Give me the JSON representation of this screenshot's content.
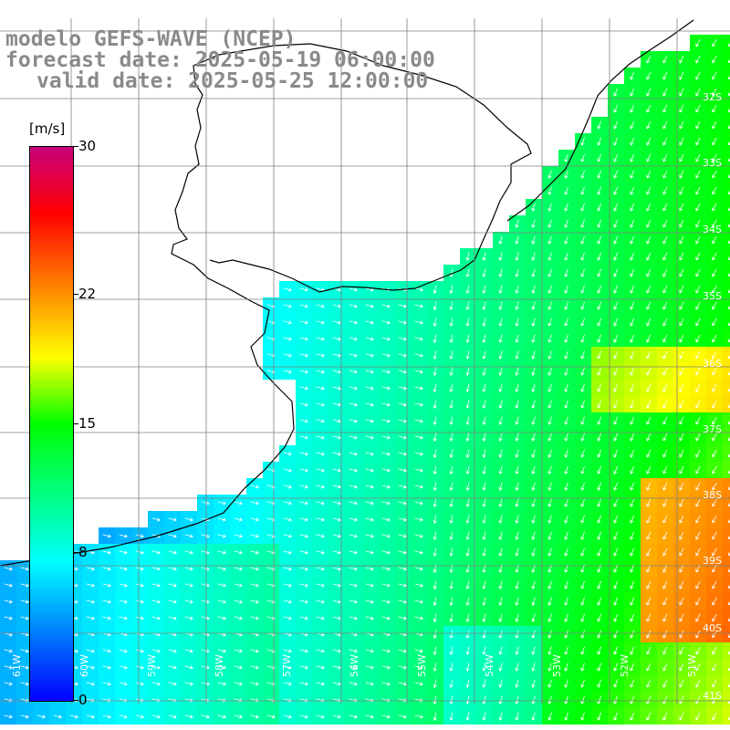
{
  "header": {
    "line1": "modelo GEFS-WAVE (NCEP)",
    "line2": "forecast date: 2025-05-19 06:00:00",
    "line3": "valid date: 2025-05-25 12:00:00"
  },
  "colorbar": {
    "unit": "[m/s]",
    "ticks": [
      "30",
      "22",
      "15",
      "8",
      "0"
    ],
    "range": [
      0,
      30
    ],
    "colors": [
      "#0000ff",
      "#00ffff",
      "#00ff00",
      "#ffff00",
      "#ff8000",
      "#ff0000",
      "#c8007c"
    ]
  },
  "map": {
    "lat_labels": [
      "32S",
      "33S",
      "34S",
      "35S",
      "36S",
      "37S",
      "38S",
      "39S",
      "40S",
      "41S"
    ],
    "lon_labels": [
      "61W",
      "60W",
      "59W",
      "58W",
      "57W",
      "56W",
      "55W",
      "54W",
      "53W",
      "52W",
      "51W"
    ],
    "land_color": "#ffffff",
    "grid_color": "#7f7f7f",
    "arrow_color": "#ffffff"
  }
}
